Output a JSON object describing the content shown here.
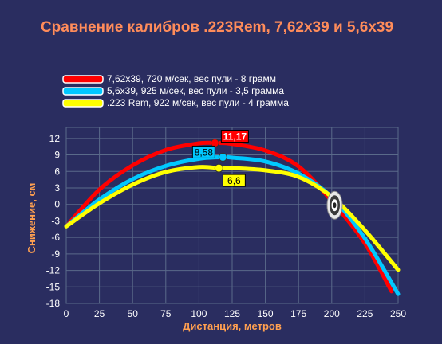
{
  "colors": {
    "background": "#2a2d60",
    "plot_background": "#2a2d60",
    "grid": "#5a6a8a",
    "title": "#ff8c5a",
    "axis_label": "#ffa050",
    "tick_text": "#ffffff"
  },
  "chart_data": {
    "type": "line",
    "title": "Сравнение калибров .223Rem, 7,62x39 и 5,6x39",
    "xlabel": "Дистанция, метров",
    "ylabel": "Снижение, см",
    "xlim": [
      0,
      250
    ],
    "ylim": [
      -18,
      14
    ],
    "xticks": [
      "0",
      "25",
      "50",
      "75",
      "100",
      "125",
      "150",
      "175",
      "200",
      "225",
      "250"
    ],
    "yticks": [
      "12",
      "9",
      "6",
      "3",
      "0",
      "-3",
      "-6",
      "-9",
      "-12",
      "-15",
      "-18"
    ],
    "grid": true,
    "legend_position": "top-left",
    "series": [
      {
        "name": "7,62x39, 720 м/сек, вес пули - 8 грамм",
        "color": "#ff0000",
        "x": [
          0,
          25,
          50,
          75,
          100,
          112,
          125,
          150,
          175,
          200,
          225,
          245
        ],
        "y": [
          -4,
          2.7,
          7.1,
          9.9,
          11.1,
          11.17,
          11.0,
          9.8,
          6.9,
          0.6,
          -7.1,
          -15.8
        ]
      },
      {
        "name": "5,6x39, 925 м/сек, вес пули - 3,5 грамма",
        "color": "#00c8ff",
        "x": [
          0,
          25,
          50,
          75,
          100,
          118,
          125,
          150,
          175,
          200,
          225,
          250
        ],
        "y": [
          -4,
          0.9,
          4.6,
          7.0,
          8.3,
          8.58,
          8.5,
          7.8,
          5.6,
          1.3,
          -6.2,
          -16.3
        ]
      },
      {
        "name": ".223 Rem, 922 м/сек, вес пули - 4 грамма",
        "color": "#ffff00",
        "x": [
          0,
          25,
          50,
          75,
          100,
          115,
          125,
          150,
          175,
          200,
          225,
          250
        ],
        "y": [
          -4,
          0.2,
          3.6,
          5.9,
          6.8,
          6.6,
          6.6,
          6.2,
          5.0,
          1.4,
          -4.7,
          -11.9
        ]
      }
    ],
    "annotations": [
      {
        "label": "11,17",
        "x": 112,
        "y": 11.17,
        "series": 0,
        "box_color": "#ff0000",
        "text_color": "#ffffff"
      },
      {
        "label": "8,58",
        "x": 118,
        "y": 8.58,
        "series": 1,
        "box_color": "#00c8ff",
        "text_color": "#000000"
      },
      {
        "label": "6,6",
        "x": 115,
        "y": 6.6,
        "series": 2,
        "box_color": "#ffff00",
        "text_color": "#000000"
      }
    ],
    "target": {
      "x": 201,
      "y": 0
    }
  }
}
